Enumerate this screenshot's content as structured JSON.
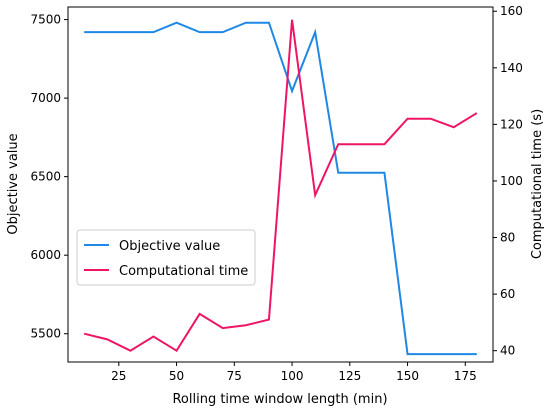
{
  "chart_data": {
    "type": "line",
    "xlabel": "Rolling time window length (min)",
    "ylabel_left": "Objective value",
    "ylabel_right": "Computational time (s)",
    "x_ticks": [
      25,
      50,
      75,
      100,
      125,
      150,
      175
    ],
    "y_left_ticks": [
      5500,
      6000,
      6500,
      7000,
      7500
    ],
    "y_right_ticks": [
      40,
      60,
      80,
      100,
      120,
      140,
      160
    ],
    "xlim": [
      3,
      187
    ],
    "ylim_left": [
      5320,
      7580
    ],
    "ylim_right": [
      36,
      161.5
    ],
    "grid": false,
    "legend_position": "center-left",
    "series": [
      {
        "name": "Objective value",
        "axis": "left",
        "color": "#1f88e5",
        "x": [
          10,
          20,
          30,
          40,
          50,
          60,
          70,
          80,
          90,
          100,
          110,
          120,
          130,
          140,
          150,
          160,
          170,
          180
        ],
        "values": [
          7420,
          7420,
          7420,
          7420,
          7480,
          7420,
          7420,
          7480,
          7480,
          7045,
          7420,
          6525,
          6525,
          6525,
          5370,
          5370,
          5370,
          5370
        ]
      },
      {
        "name": "Computational time",
        "axis": "right",
        "color": "#ee1566",
        "x": [
          10,
          20,
          30,
          40,
          50,
          60,
          70,
          80,
          90,
          100,
          110,
          120,
          130,
          140,
          150,
          160,
          170,
          180
        ],
        "values": [
          46,
          44,
          40,
          45,
          40,
          53,
          48,
          49,
          51,
          157,
          95,
          113,
          113,
          113,
          122,
          122,
          119,
          124
        ]
      }
    ]
  }
}
